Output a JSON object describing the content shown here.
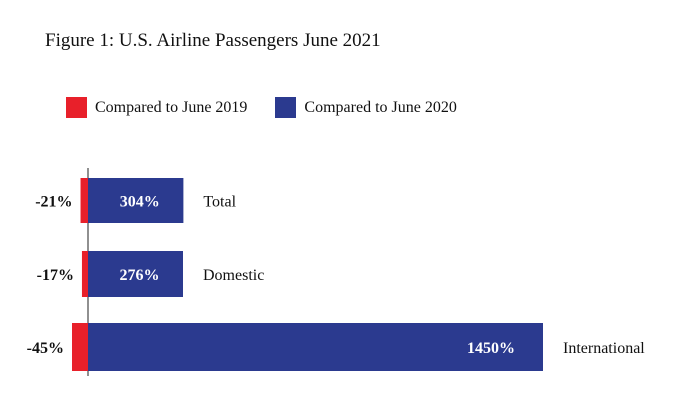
{
  "chart_data": {
    "type": "bar",
    "title": "Figure 1: U.S. Airline Passengers June 2021",
    "categories": [
      "Total",
      "Domestic",
      "International"
    ],
    "series": [
      {
        "name": "Compared to June 2019",
        "values": [
          -21,
          -17,
          -45
        ],
        "labels": [
          "-21%",
          "-17%",
          "-45%"
        ],
        "color": "#e8202a"
      },
      {
        "name": "Compared to June 2020",
        "values": [
          304,
          276,
          1450
        ],
        "labels": [
          "304%",
          "276%",
          "1450%"
        ],
        "color": "#2b3a8f"
      }
    ],
    "orientation": "horizontal",
    "legend": "top-left",
    "grid": false
  }
}
